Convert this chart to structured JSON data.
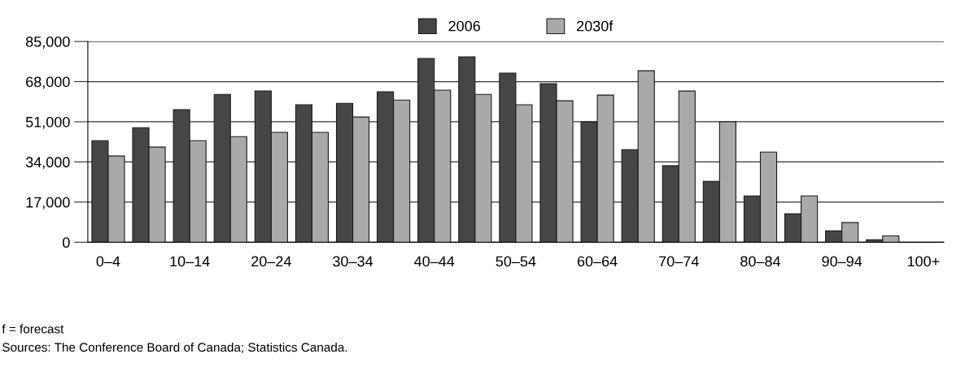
{
  "chart_data": {
    "type": "bar",
    "categories": [
      "0–4",
      null,
      "10–14",
      null,
      "20–24",
      null,
      "30–34",
      null,
      "40–44",
      null,
      "50–54",
      null,
      "60–64",
      null,
      "70–74",
      null,
      "80–84",
      null,
      "90–94",
      null,
      "100+"
    ],
    "series": [
      {
        "name": "2006",
        "color": "#464648",
        "values": [
          43000,
          48500,
          56100,
          62600,
          64000,
          58200,
          58800,
          63700,
          77800,
          78500,
          71600,
          67100,
          51000,
          39200,
          32400,
          25800,
          19600,
          12000,
          4800,
          1000,
          null
        ]
      },
      {
        "name": "2030f",
        "color": "#a8a9ab",
        "values": [
          36500,
          40300,
          43000,
          44700,
          46500,
          46500,
          53000,
          60200,
          64400,
          62600,
          58200,
          59900,
          62300,
          72600,
          64000,
          51000,
          38200,
          19600,
          8300,
          2700,
          null
        ]
      }
    ],
    "ylim": [
      0,
      85000
    ],
    "yticks": [
      {
        "value": 0,
        "label": "0"
      },
      {
        "value": 17000,
        "label": "17,000"
      },
      {
        "value": 34000,
        "label": "34,000"
      },
      {
        "value": 51000,
        "label": "51,000"
      },
      {
        "value": 68000,
        "label": "68,000"
      },
      {
        "value": 85000,
        "label": "85,000"
      }
    ],
    "grid": "y",
    "legend": "top",
    "annotations": [
      "f = forecast",
      "Sources: The Conference Board of Canada; Statistics Canada."
    ]
  }
}
